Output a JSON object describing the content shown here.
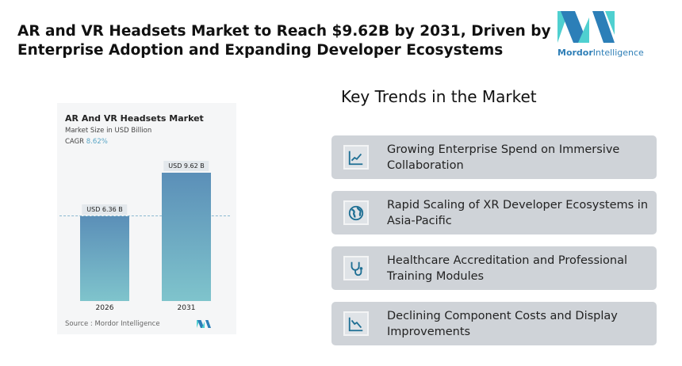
{
  "title": "AR and VR Headsets Market to Reach $9.62B by 2031, Driven by Enterprise Adoption and Expanding Developer Ecosystems",
  "logo": {
    "brand_bold": "Mordor",
    "brand_rest": "Intelligence"
  },
  "chart_data": {
    "type": "bar",
    "title": "AR And VR Headsets Market",
    "subtitle": "Market Size in USD Billion",
    "cagr_label": "CAGR",
    "cagr_value": "8.62%",
    "categories": [
      "2026",
      "2031"
    ],
    "values": [
      6.36,
      9.62
    ],
    "data_labels": [
      "USD 6.36 B",
      "USD 9.62 B"
    ],
    "source": "Source :  Mordor Intelligence",
    "colors": [
      "#5b8fb8",
      "#7fc4cc"
    ]
  },
  "trends": {
    "heading": "Key Trends in the Market",
    "items": [
      {
        "icon": "line-chart-icon",
        "text": "Growing Enterprise Spend on Immersive Collaboration"
      },
      {
        "icon": "globe-icon",
        "text": "Rapid Scaling of XR Developer Ecosystems in Asia-Pacific"
      },
      {
        "icon": "stethoscope-icon",
        "text": "Healthcare Accreditation and Professional Training Modules"
      },
      {
        "icon": "declining-chart-icon",
        "text": "Declining Component Costs and Display Improvements"
      }
    ]
  }
}
